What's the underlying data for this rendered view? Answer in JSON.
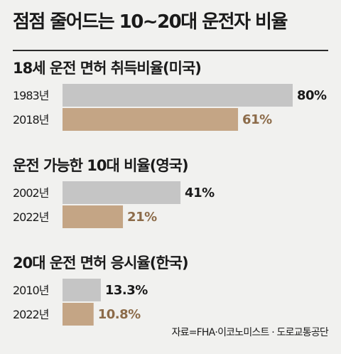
{
  "title": "점점 줄어드는 10~20대 운전자 비율",
  "source": "자료=FHA·이코노미스트 · 도로교통공단",
  "colors": {
    "past": "#c5c5c5",
    "recent": "#c4a585",
    "recent_text": "#8c6b49",
    "background": "#f1f1ef"
  },
  "chart_data": [
    {
      "type": "bar",
      "title": "18세 운전 면허 취득비율(미국)",
      "categories": [
        "1983년",
        "2018년"
      ],
      "values": [
        80,
        61
      ],
      "labels": [
        "80%",
        "61%"
      ],
      "xlim": [
        0,
        80
      ]
    },
    {
      "type": "bar",
      "title": "운전 가능한 10대 비율(영국)",
      "categories": [
        "2002년",
        "2022년"
      ],
      "values": [
        41,
        21
      ],
      "labels": [
        "41%",
        "21%"
      ],
      "xlim": [
        0,
        80
      ]
    },
    {
      "type": "bar",
      "title": "20대 운전 면허 응시율(한국)",
      "categories": [
        "2010년",
        "2022년"
      ],
      "values": [
        13.3,
        10.8
      ],
      "labels": [
        "13.3%",
        "10.8%"
      ],
      "xlim": [
        0,
        80
      ]
    }
  ]
}
